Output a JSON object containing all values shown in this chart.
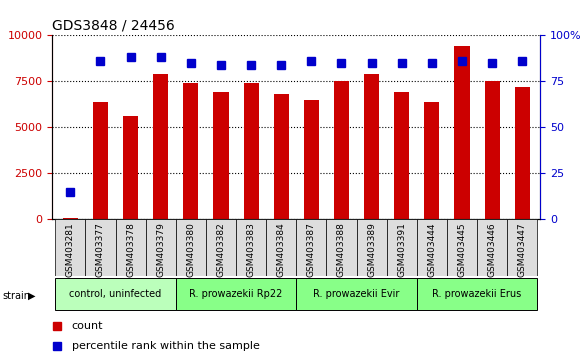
{
  "title": "GDS3848 / 24456",
  "samples": [
    "GSM403281",
    "GSM403377",
    "GSM403378",
    "GSM403379",
    "GSM403380",
    "GSM403382",
    "GSM403383",
    "GSM403384",
    "GSM403387",
    "GSM403388",
    "GSM403389",
    "GSM403391",
    "GSM403444",
    "GSM403445",
    "GSM403446",
    "GSM403447"
  ],
  "counts": [
    100,
    6400,
    5600,
    7900,
    7400,
    6900,
    7400,
    6800,
    6500,
    7500,
    7900,
    6900,
    6400,
    9400,
    7500,
    7200
  ],
  "percentiles": [
    15,
    86,
    88,
    88,
    85,
    84,
    84,
    84,
    86,
    85,
    85,
    85,
    85,
    86,
    85,
    86
  ],
  "ylim_left": [
    0,
    10000
  ],
  "ylim_right": [
    0,
    100
  ],
  "yticks_left": [
    0,
    2500,
    5000,
    7500,
    10000
  ],
  "yticks_right": [
    0,
    25,
    50,
    75,
    100
  ],
  "bar_color": "#cc0000",
  "dot_color": "#0000cc",
  "strain_groups": [
    {
      "label": "control, uninfected",
      "start": 0,
      "end": 3,
      "color": "#bbffbb"
    },
    {
      "label": "R. prowazekii Rp22",
      "start": 4,
      "end": 7,
      "color": "#88ff88"
    },
    {
      "label": "R. prowazekii Evir",
      "start": 8,
      "end": 11,
      "color": "#88ff88"
    },
    {
      "label": "R. prowazekii Erus",
      "start": 12,
      "end": 15,
      "color": "#88ff88"
    }
  ]
}
